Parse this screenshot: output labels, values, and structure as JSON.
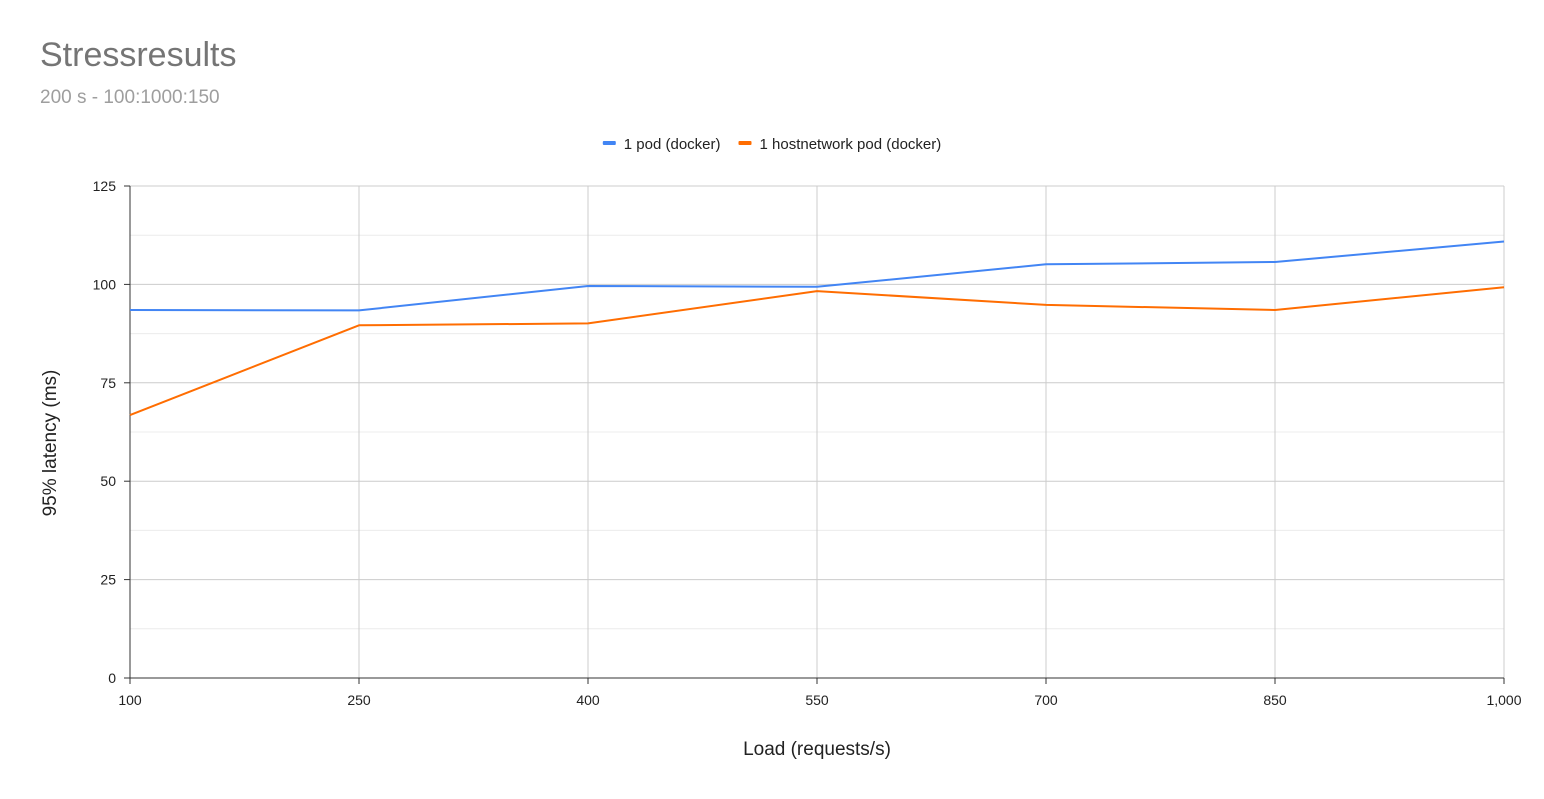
{
  "chart_data": {
    "type": "line",
    "title": "Stressresults",
    "subtitle": "200 s - 100:1000:150",
    "xlabel": "Load (requests/s)",
    "ylabel": "95% latency (ms)",
    "x": [
      100,
      250,
      400,
      550,
      700,
      850,
      1000
    ],
    "x_tick_labels": [
      "100",
      "250",
      "400",
      "550",
      "700",
      "850",
      "1,000"
    ],
    "xlim": [
      100,
      1000
    ],
    "ylim": [
      0,
      125
    ],
    "y_ticks": [
      0,
      25,
      50,
      75,
      100,
      125
    ],
    "y_tick_labels": [
      "0",
      "25",
      "50",
      "75",
      "100",
      "125"
    ],
    "y_minor_ticks": [
      12.5,
      37.5,
      62.5,
      87.5,
      112.5
    ],
    "grid": true,
    "legend_position": "top",
    "series": [
      {
        "name": "1 pod (docker)",
        "color": "#4285f4",
        "values": [
          93.5,
          93.4,
          99.6,
          99.4,
          105.1,
          105.7,
          110.9
        ]
      },
      {
        "name": "1 hostnetwork pod (docker)",
        "color": "#ff6d01",
        "values": [
          66.8,
          89.6,
          90.1,
          98.3,
          94.8,
          93.5,
          99.3
        ]
      }
    ]
  }
}
